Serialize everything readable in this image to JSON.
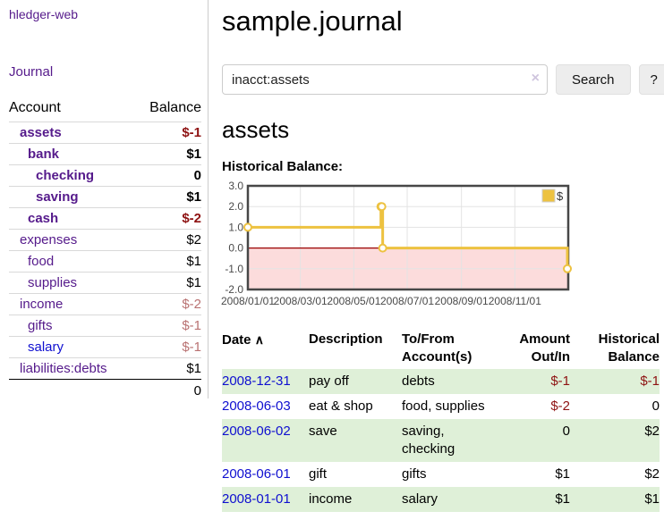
{
  "app": {
    "brand": "hledger-web",
    "nav": {
      "journal": "Journal"
    }
  },
  "sidebar": {
    "accounts_header": {
      "account": "Account",
      "balance": "Balance"
    },
    "accounts": [
      {
        "name": "assets",
        "balance": "$-1"
      },
      {
        "name": "bank",
        "balance": "$1"
      },
      {
        "name": "checking",
        "balance": "0"
      },
      {
        "name": "saving",
        "balance": "$1"
      },
      {
        "name": "cash",
        "balance": "$-2"
      },
      {
        "name": "expenses",
        "balance": "$2"
      },
      {
        "name": "food",
        "balance": "$1"
      },
      {
        "name": "supplies",
        "balance": "$1"
      },
      {
        "name": "income",
        "balance": "$-2"
      },
      {
        "name": "gifts",
        "balance": "$-1"
      },
      {
        "name": "salary",
        "balance": "$-1"
      },
      {
        "name": "liabilities:debts",
        "balance": "$1"
      }
    ],
    "total": "0"
  },
  "main": {
    "title": "sample.journal",
    "search": {
      "query": "inacct:assets",
      "clear_icon": "×",
      "search_button": "Search",
      "help_button": "?"
    },
    "account_heading": "assets",
    "section_heading": "Historical Balance:"
  },
  "chart_data": {
    "type": "line",
    "title": "Historical Balance",
    "series": [
      {
        "name": "$",
        "color": "#edc240",
        "steps": true,
        "points": [
          [
            "2008-01-01",
            1.0
          ],
          [
            "2008-06-01",
            2.0
          ],
          [
            "2008-06-02",
            2.0
          ],
          [
            "2008-06-03",
            0.0
          ],
          [
            "2008-12-31",
            -1.0
          ]
        ]
      }
    ],
    "xlim": [
      "2008-01-01",
      "2009-01-01"
    ],
    "ylim": [
      -2.0,
      3.0
    ],
    "y_ticks": [
      {
        "value": 3.0,
        "label": "3.0"
      },
      {
        "value": 2.0,
        "label": "2.0"
      },
      {
        "value": 1.0,
        "label": "1.0"
      },
      {
        "value": 0.0,
        "label": "0.0"
      },
      {
        "value": -1.0,
        "label": "-1.0"
      },
      {
        "value": -2.0,
        "label": "-2.0"
      }
    ],
    "x_ticks": [
      {
        "date": "2008-01-01",
        "label": "2008/01/01"
      },
      {
        "date": "2008-03-01",
        "label": "2008/03/01"
      },
      {
        "date": "2008-05-01",
        "label": "2008/05/01"
      },
      {
        "date": "2008-07-01",
        "label": "2008/07/01"
      },
      {
        "date": "2008-09-01",
        "label": "2008/09/01"
      },
      {
        "date": "2008-11-01",
        "label": "2008/11/01"
      }
    ],
    "legend": {
      "position": "top-right",
      "label": "$",
      "swatch_color": "#edc240"
    },
    "grid": true,
    "negative_region_color": "#fcdcdc",
    "zero_line_color": "#990000"
  },
  "register": {
    "headers": {
      "date": "Date",
      "sort_icon": "∧",
      "description": "Description",
      "accounts": "To/From Account(s)",
      "amount": "Amount Out/In",
      "balance": "Historical Balance"
    },
    "rows": [
      {
        "date": "2008-12-31",
        "description": "pay off",
        "accounts": "debts",
        "amount": "$-1",
        "balance": "$-1"
      },
      {
        "date": "2008-06-03",
        "description": "eat & shop",
        "accounts": "food, supplies",
        "amount": "$-2",
        "balance": "0"
      },
      {
        "date": "2008-06-02",
        "description": "save",
        "accounts": "saving, checking",
        "amount": "0",
        "balance": "$2"
      },
      {
        "date": "2008-06-01",
        "description": "gift",
        "accounts": "gifts",
        "amount": "$1",
        "balance": "$2"
      },
      {
        "date": "2008-01-01",
        "description": "income",
        "accounts": "salary",
        "amount": "$1",
        "balance": "$1"
      }
    ]
  }
}
